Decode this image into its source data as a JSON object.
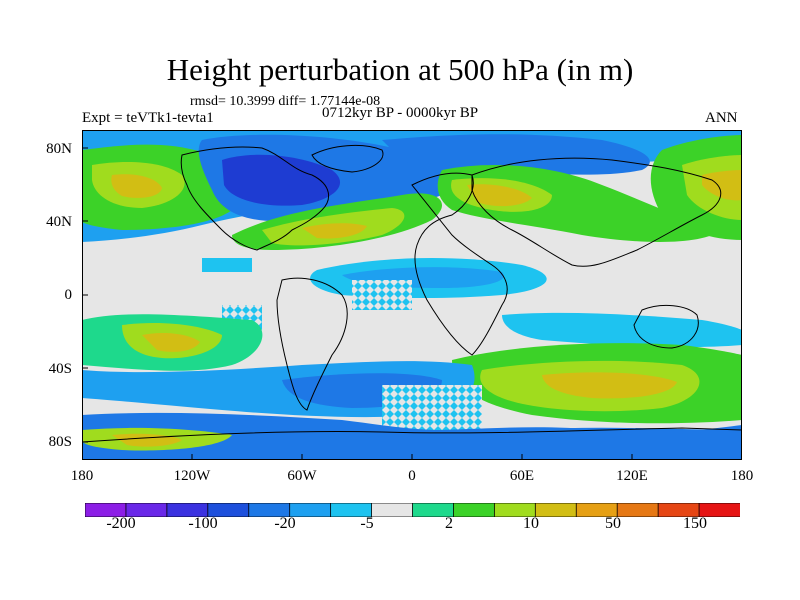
{
  "title": "Height perturbation at 500 hPa (in m)",
  "stats": "rmsd= 10.3999 diff= 1.77144e-08",
  "experiment": "Expt = teVTk1-tevta1",
  "period": "0712kyr BP - 0000kyr BP",
  "season": "ANN",
  "axes": {
    "y_ticks": [
      "80N",
      "40N",
      "0",
      "40S",
      "80S"
    ],
    "x_ticks": [
      "180",
      "120W",
      "60W",
      "0",
      "60E",
      "120E",
      "180"
    ]
  },
  "colorbar": {
    "colors": [
      "#8c1ee6",
      "#6a28e8",
      "#3b32e0",
      "#1e50dc",
      "#1e78e6",
      "#1ea0f0",
      "#1ec3f0",
      "#e6e6e6",
      "#1ed98c",
      "#3cd228",
      "#a0dc1e",
      "#d2be14",
      "#e6a014",
      "#e67814",
      "#e64614",
      "#e61414"
    ],
    "labels": [
      "-200",
      "-100",
      "-20",
      "-5",
      "2",
      "10",
      "50",
      "150"
    ]
  },
  "field_colors": {
    "strong_negative": "#1e3cd2",
    "negative": "#1e78e6",
    "weak_negative": "#1ea0f0",
    "slight_negative": "#1ec3f0",
    "neutral": "#e6e6e6",
    "slight_positive": "#1ed98c",
    "weak_positive": "#3cd228",
    "positive": "#a0dc1e",
    "strong_positive": "#d2be14"
  }
}
